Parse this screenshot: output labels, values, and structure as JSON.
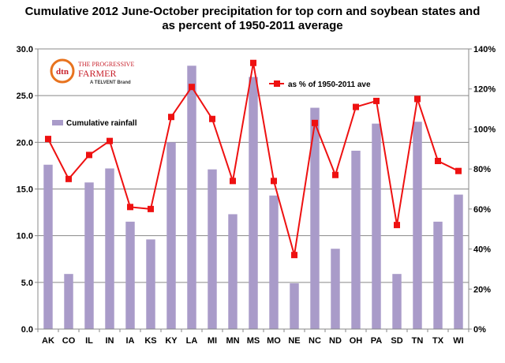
{
  "title_lines": [
    "Cumulative 2012 June-October precipitation for top corn and soybean states and",
    "as percent of 1950-2011 average"
  ],
  "logo": {
    "mark": "dtn",
    "line1": "THE PROGRESSIVE",
    "line2": "FARMER",
    "line3": "A TELVENT Brand"
  },
  "colors": {
    "bar": "#a99bc9",
    "line": "#ee1111",
    "logo_orange": "#e8731e",
    "logo_red": "#c8202b"
  },
  "chart_data": {
    "type": "bar",
    "title": "Cumulative 2012 June-October precipitation for top corn and soybean states and as percent of 1950-2011 average",
    "categories": [
      "AK",
      "CO",
      "IL",
      "IN",
      "IA",
      "KS",
      "KY",
      "LA",
      "MI",
      "MN",
      "MS",
      "MO",
      "NE",
      "NC",
      "ND",
      "OH",
      "PA",
      "SD",
      "TN",
      "TX",
      "WI"
    ],
    "series": [
      {
        "name": "Cumulative rainfall",
        "type": "bar",
        "axis": "left",
        "values": [
          17.6,
          5.9,
          15.7,
          17.2,
          11.5,
          9.6,
          20.0,
          28.2,
          17.1,
          12.3,
          27.0,
          14.3,
          4.9,
          23.7,
          8.6,
          19.1,
          22.0,
          5.9,
          22.2,
          11.5,
          14.4
        ]
      },
      {
        "name": "as % of 1950-2011 ave",
        "type": "line",
        "axis": "right",
        "values": [
          95,
          75,
          87,
          94,
          61,
          60,
          106,
          121,
          105,
          74,
          133,
          74,
          37,
          103,
          77,
          111,
          114,
          52,
          115,
          84,
          79
        ]
      }
    ],
    "y_left": {
      "min": 0,
      "max": 30,
      "step": 5,
      "ticks": [
        "0.0",
        "5.0",
        "10.0",
        "15.0",
        "20.0",
        "25.0",
        "30.0"
      ]
    },
    "y_right": {
      "min": 0,
      "max": 140,
      "step": 20,
      "ticks": [
        "0%",
        "20%",
        "40%",
        "60%",
        "80%",
        "100%",
        "120%",
        "140%"
      ]
    },
    "grid": true,
    "legend": [
      "as % of 1950-2011 ave",
      "Cumulative rainfall"
    ]
  }
}
